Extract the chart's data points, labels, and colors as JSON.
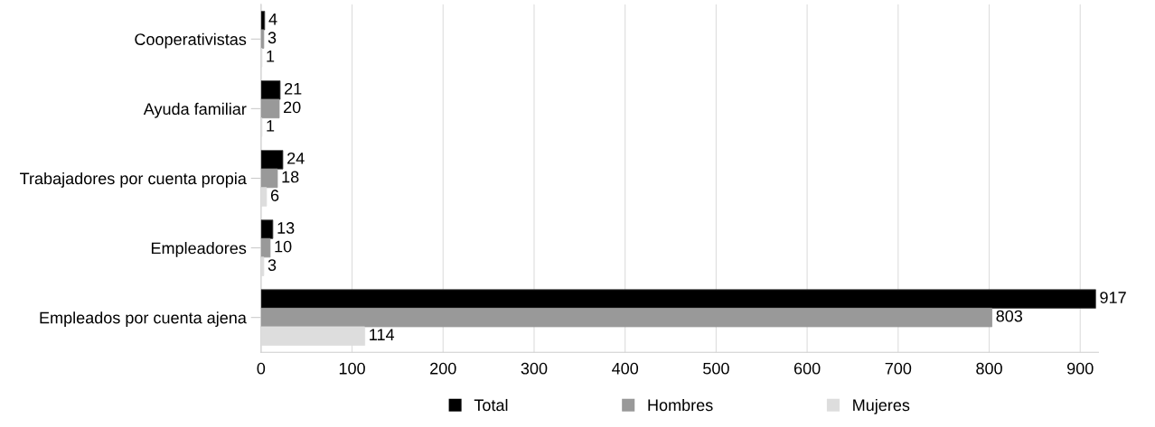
{
  "chart_data": {
    "type": "bar",
    "orientation": "horizontal",
    "categories": [
      "Cooperativistas",
      "Ayuda familiar",
      "Trabajadores por cuenta propia",
      "Empleadores",
      "Empleados por cuenta ajena"
    ],
    "series": [
      {
        "name": "Total",
        "color": "#000000",
        "values": [
          4,
          21,
          24,
          13,
          917
        ]
      },
      {
        "name": "Hombres",
        "color": "#999999",
        "values": [
          3,
          20,
          18,
          10,
          803
        ]
      },
      {
        "name": "Mujeres",
        "color": "#dddddd",
        "values": [
          1,
          1,
          6,
          3,
          114
        ]
      }
    ],
    "xlim": [
      0,
      920
    ],
    "xticks": [
      0,
      100,
      200,
      300,
      400,
      500,
      600,
      700,
      800,
      900
    ],
    "grid": "x",
    "legend": "bottom",
    "data_labels": true
  }
}
